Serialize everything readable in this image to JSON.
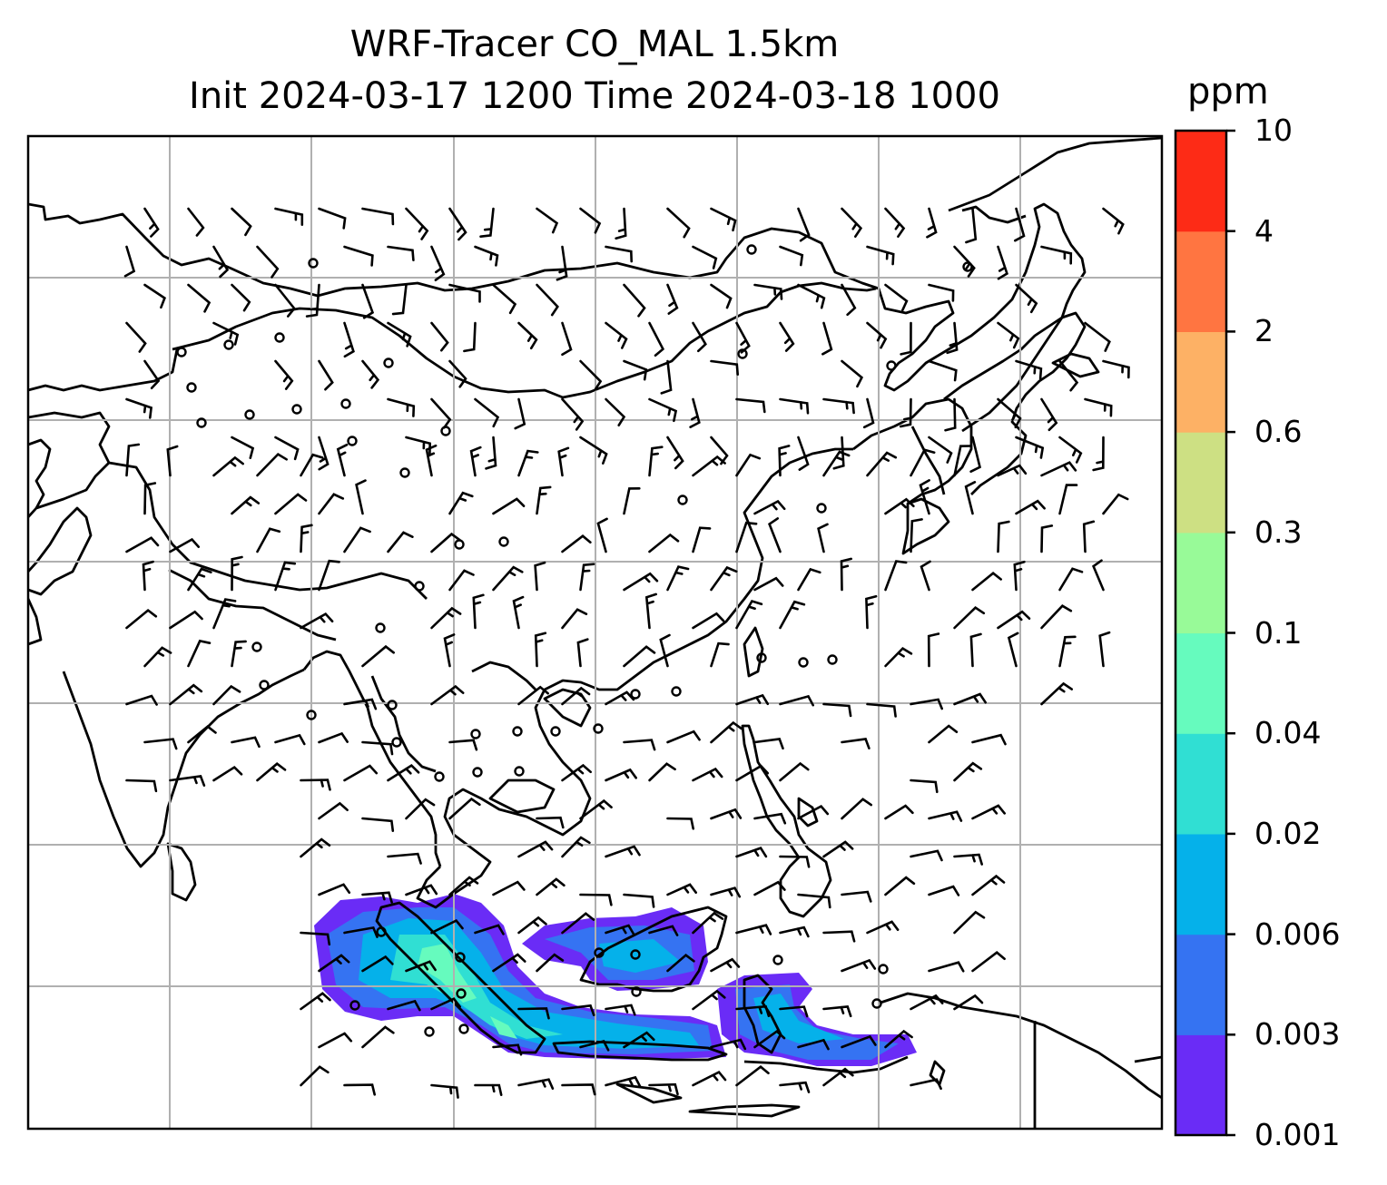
{
  "title": {
    "line1": "WRF-Tracer CO_MAL 1.5km",
    "line2": "Init 2024-03-17 1200 Time 2024-03-18 1000"
  },
  "colorbar": {
    "unit": "ppm",
    "ticks": [
      "0.001",
      "0.003",
      "0.006",
      "0.02",
      "0.04",
      "0.1",
      "0.3",
      "0.6",
      "2",
      "4",
      "10"
    ],
    "colors": [
      "#6a2cf6",
      "#3573f2",
      "#05b1ea",
      "#30dfd3",
      "#66fbbe",
      "#98fa98",
      "#cde083",
      "#fdb165",
      "#ff7541",
      "#fd2b16"
    ]
  },
  "map": {
    "field": "CO_MAL tracer concentration",
    "coastline_color": "#000000",
    "gridline_color": "#b0b0b0",
    "plume_colors": [
      "#6a2cf6",
      "#3573f2",
      "#05b1ea",
      "#30dfd3",
      "#66fbbe"
    ]
  }
}
